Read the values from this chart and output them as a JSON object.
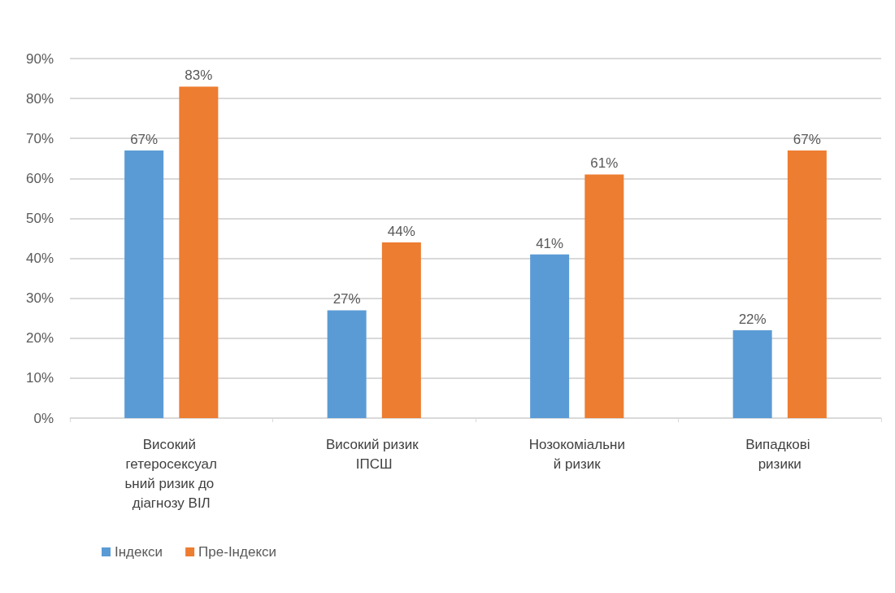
{
  "chart_data": {
    "type": "bar",
    "categories": [
      "Високий гетеросексуальний ризик до діагнозу ВІЛ",
      "Високий ризик ІПСШ",
      "Нозокоміальний ризик",
      "Випадкові ризики"
    ],
    "series": [
      {
        "name": "Індекси",
        "color": "#5b9bd5",
        "values": [
          67,
          27,
          41,
          22
        ]
      },
      {
        "name": "Пре-Індекси",
        "color": "#ed7d31",
        "values": [
          83,
          44,
          61,
          67
        ]
      }
    ],
    "ylim": [
      0,
      90
    ],
    "yticks": [
      {
        "value": 0,
        "label": "0%"
      },
      {
        "value": 10,
        "label": "10%"
      },
      {
        "value": 20,
        "label": "20%"
      },
      {
        "value": 30,
        "label": "30%"
      },
      {
        "value": 40,
        "label": "40%"
      },
      {
        "value": 50,
        "label": "50%"
      },
      {
        "value": 60,
        "label": "60%"
      },
      {
        "value": 70,
        "label": "70%"
      },
      {
        "value": 80,
        "label": "80%"
      },
      {
        "value": 90,
        "label": "90%"
      }
    ],
    "value_labels": [
      [
        "67%",
        "27%",
        "41%",
        "22%"
      ],
      [
        "83%",
        "44%",
        "61%",
        "67%"
      ]
    ],
    "grid": "y",
    "legend": "bottom left"
  }
}
